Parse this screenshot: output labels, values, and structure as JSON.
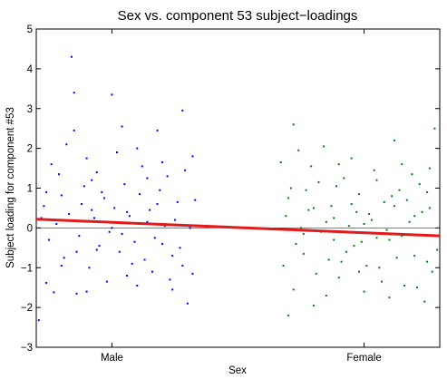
{
  "chart_data": {
    "type": "scatter",
    "title": "Sex vs. component 53 subject−loadings",
    "xlabel": "Sex",
    "ylabel": "Subject loading for component #53",
    "ylim": [
      -3,
      5
    ],
    "xlim": [
      0.7,
      2.3
    ],
    "yticks": [
      "−3",
      "−2",
      "−1",
      "0",
      "1",
      "2",
      "3",
      "4",
      "5"
    ],
    "ytick_values": [
      -3,
      -2,
      -1,
      0,
      1,
      2,
      3,
      4,
      5
    ],
    "categories": [
      "Male",
      "Female"
    ],
    "category_positions": [
      1,
      2
    ],
    "grid": false,
    "zero_line": 0,
    "fit_line": {
      "x": [
        0.7,
        2.3
      ],
      "y": [
        0.22,
        -0.2
      ],
      "color": "#e31a1c"
    },
    "series": [
      {
        "color": "#0000ff",
        "points": [
          [
            0.71,
            -2.32
          ],
          [
            0.72,
            0.25
          ],
          [
            0.74,
            -1.38
          ],
          [
            0.77,
            -1.62
          ],
          [
            0.79,
            1.35
          ],
          [
            0.8,
            0.82
          ],
          [
            0.84,
            4.3
          ],
          [
            0.85,
            3.4
          ],
          [
            0.85,
            2.45
          ],
          [
            0.86,
            -1.65
          ],
          [
            0.88,
            0.6
          ],
          [
            0.9,
            1.75
          ],
          [
            0.92,
            1.2
          ],
          [
            0.94,
            -0.55
          ],
          [
            0.96,
            0.9
          ],
          [
            0.98,
            -1.35
          ],
          [
            1.0,
            3.35
          ],
          [
            1.02,
            1.9
          ],
          [
            1.04,
            2.55
          ],
          [
            1.06,
            0.4
          ],
          [
            1.08,
            -0.9
          ],
          [
            1.1,
            2.0
          ],
          [
            1.12,
            1.55
          ],
          [
            1.14,
            0.15
          ],
          [
            1.16,
            -1.1
          ],
          [
            1.18,
            2.45
          ],
          [
            1.2,
            -0.4
          ],
          [
            1.22,
            1.3
          ],
          [
            1.24,
            -0.7
          ],
          [
            1.26,
            0.65
          ],
          [
            1.28,
            2.95
          ],
          [
            1.3,
            -1.9
          ],
          [
            1.31,
            0.0
          ],
          [
            1.32,
            1.8
          ],
          [
            1.32,
            -1.15
          ],
          [
            0.73,
            0.55
          ],
          [
            0.75,
            -0.3
          ],
          [
            0.78,
            0.1
          ],
          [
            0.81,
            -0.75
          ],
          [
            0.83,
            0.35
          ],
          [
            0.87,
            -0.2
          ],
          [
            0.89,
            1.05
          ],
          [
            0.91,
            -1.0
          ],
          [
            0.93,
            0.25
          ],
          [
            0.95,
            -0.45
          ],
          [
            0.97,
            0.75
          ],
          [
            0.99,
            -0.1
          ],
          [
            1.01,
            0.5
          ],
          [
            1.03,
            -0.6
          ],
          [
            1.05,
            1.1
          ],
          [
            1.07,
            0.3
          ],
          [
            1.09,
            -0.35
          ],
          [
            1.11,
            0.85
          ],
          [
            1.13,
            -0.8
          ],
          [
            1.15,
            0.45
          ],
          [
            1.17,
            -0.25
          ],
          [
            1.19,
            0.95
          ],
          [
            1.21,
            0.05
          ],
          [
            1.23,
            -1.3
          ],
          [
            1.25,
            0.2
          ],
          [
            1.27,
            -0.5
          ],
          [
            1.29,
            1.45
          ],
          [
            0.76,
            1.6
          ],
          [
            0.82,
            2.1
          ],
          [
            0.9,
            -1.6
          ],
          [
            1.0,
            0.0
          ],
          [
            1.1,
            -1.45
          ],
          [
            1.2,
            1.65
          ],
          [
            1.28,
            -0.95
          ],
          [
            1.33,
            0.7
          ],
          [
            0.74,
            0.9
          ],
          [
            0.86,
            -0.6
          ],
          [
            0.94,
            1.4
          ],
          [
            1.04,
            -0.15
          ],
          [
            1.14,
            1.25
          ],
          [
            1.24,
            -1.55
          ],
          [
            0.8,
            -0.95
          ],
          [
            0.92,
            0.45
          ],
          [
            1.06,
            -1.2
          ],
          [
            1.18,
            0.6
          ]
        ]
      },
      {
        "color": "#008000",
        "points": [
          [
            1.67,
            1.65
          ],
          [
            1.68,
            -0.95
          ],
          [
            1.7,
            0.75
          ],
          [
            1.72,
            -1.55
          ],
          [
            1.74,
            1.95
          ],
          [
            1.76,
            -0.15
          ],
          [
            1.78,
            0.45
          ],
          [
            1.8,
            -1.95
          ],
          [
            1.82,
            1.15
          ],
          [
            1.84,
            2.05
          ],
          [
            1.86,
            -0.8
          ],
          [
            1.88,
            0.25
          ],
          [
            1.9,
            -1.25
          ],
          [
            1.92,
            1.25
          ],
          [
            1.94,
            0.05
          ],
          [
            1.96,
            -0.45
          ],
          [
            1.98,
            0.85
          ],
          [
            2.0,
            -1.6
          ],
          [
            2.02,
            0.35
          ],
          [
            2.04,
            1.45
          ],
          [
            2.06,
            -1.0
          ],
          [
            2.08,
            0.65
          ],
          [
            2.1,
            -0.3
          ],
          [
            2.12,
            2.2
          ],
          [
            2.14,
            0.95
          ],
          [
            2.16,
            -1.45
          ],
          [
            2.18,
            0.15
          ],
          [
            2.2,
            -0.7
          ],
          [
            2.22,
            1.1
          ],
          [
            2.24,
            -1.85
          ],
          [
            2.26,
            0.5
          ],
          [
            2.28,
            2.5
          ],
          [
            2.29,
            -0.55
          ],
          [
            1.7,
            -2.2
          ],
          [
            1.72,
            2.6
          ],
          [
            1.76,
            -0.65
          ],
          [
            1.79,
            1.55
          ],
          [
            1.83,
            -0.1
          ],
          [
            1.87,
            0.55
          ],
          [
            1.91,
            -0.85
          ],
          [
            1.95,
            1.75
          ],
          [
            1.99,
            -0.35
          ],
          [
            2.03,
            0.2
          ],
          [
            2.07,
            -1.35
          ],
          [
            2.11,
            0.8
          ],
          [
            2.15,
            -0.2
          ],
          [
            2.19,
            1.35
          ],
          [
            2.23,
            0.4
          ],
          [
            2.27,
            -1.1
          ],
          [
            1.69,
            0.3
          ],
          [
            1.73,
            -0.4
          ],
          [
            1.77,
            0.95
          ],
          [
            1.81,
            -1.15
          ],
          [
            1.85,
            0.15
          ],
          [
            1.89,
            1.05
          ],
          [
            1.93,
            -0.6
          ],
          [
            1.97,
            0.4
          ],
          [
            2.01,
            -0.95
          ],
          [
            2.05,
            1.2
          ],
          [
            2.09,
            -0.05
          ],
          [
            2.13,
            -0.75
          ],
          [
            2.17,
            0.7
          ],
          [
            2.21,
            -1.5
          ],
          [
            2.25,
            0.9
          ],
          [
            1.75,
            0.0
          ],
          [
            1.85,
            -1.7
          ],
          [
            1.95,
            0.6
          ],
          [
            2.05,
            -0.25
          ],
          [
            2.15,
            1.6
          ],
          [
            2.25,
            -0.85
          ],
          [
            1.8,
            0.5
          ],
          [
            1.9,
            1.6
          ],
          [
            2.0,
            0.1
          ],
          [
            2.1,
            -1.75
          ],
          [
            2.2,
            0.3
          ],
          [
            1.71,
            1.0
          ],
          [
            1.88,
            -0.3
          ],
          [
            1.98,
            -1.1
          ],
          [
            2.12,
            0.55
          ],
          [
            2.26,
            1.5
          ]
        ]
      }
    ]
  }
}
